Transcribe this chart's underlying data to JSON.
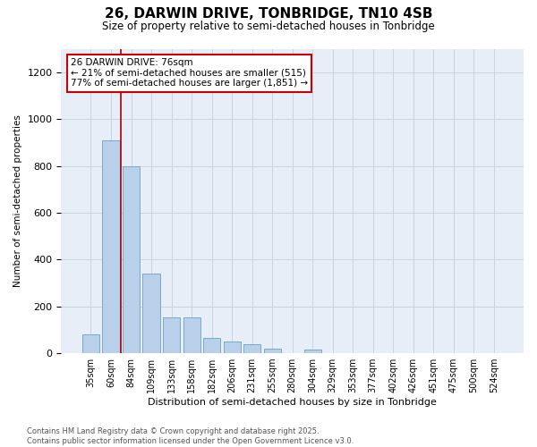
{
  "title_line1": "26, DARWIN DRIVE, TONBRIDGE, TN10 4SB",
  "title_line2": "Size of property relative to semi-detached houses in Tonbridge",
  "xlabel": "Distribution of semi-detached houses by size in Tonbridge",
  "ylabel": "Number of semi-detached properties",
  "categories": [
    "35sqm",
    "60sqm",
    "84sqm",
    "109sqm",
    "133sqm",
    "158sqm",
    "182sqm",
    "206sqm",
    "231sqm",
    "255sqm",
    "280sqm",
    "304sqm",
    "329sqm",
    "353sqm",
    "377sqm",
    "402sqm",
    "426sqm",
    "451sqm",
    "475sqm",
    "500sqm",
    "524sqm"
  ],
  "values": [
    80,
    910,
    800,
    340,
    155,
    155,
    65,
    50,
    40,
    20,
    0,
    15,
    0,
    0,
    0,
    0,
    0,
    0,
    0,
    0,
    0
  ],
  "bar_color": "#b8d0ea",
  "bar_edge_color": "#7aaac8",
  "grid_color": "#c8d4e4",
  "background_color": "#e8eef8",
  "vline_x_index": 1.5,
  "vline_color": "#aa0000",
  "annotation_text": "26 DARWIN DRIVE: 76sqm\n← 21% of semi-detached houses are smaller (515)\n77% of semi-detached houses are larger (1,851) →",
  "annotation_box_facecolor": "#ffffff",
  "annotation_box_edgecolor": "#cc0000",
  "ylim": [
    0,
    1300
  ],
  "yticks": [
    0,
    200,
    400,
    600,
    800,
    1000,
    1200
  ],
  "footnote": "Contains HM Land Registry data © Crown copyright and database right 2025.\nContains public sector information licensed under the Open Government Licence v3.0."
}
